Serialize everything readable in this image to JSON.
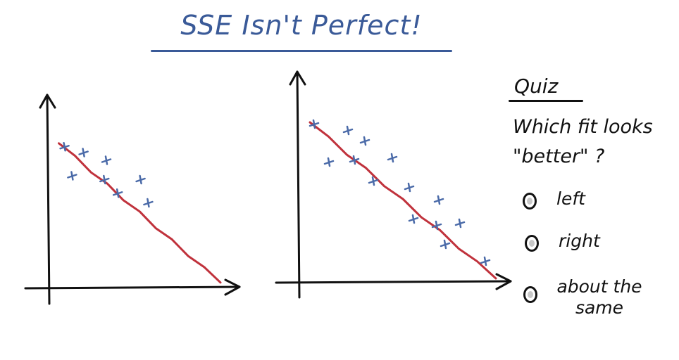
{
  "title": "SSE Isn't Perfect!",
  "quiz": {
    "heading": "Quiz",
    "question_line1": "Which fit looks",
    "question_line2": "\"better\" ?",
    "options": [
      {
        "label": "left"
      },
      {
        "label": "right"
      },
      {
        "label_line1": "about the",
        "label_line2": "same"
      }
    ]
  },
  "colors": {
    "title": "#3a5a98",
    "point_marks": "#4a6aa8",
    "fit_line": "#c0323c",
    "axes": "#111111"
  },
  "chart_data": [
    {
      "type": "scatter",
      "title": "",
      "xlabel": "",
      "ylabel": "",
      "xlim": [
        0,
        10
      ],
      "ylim": [
        0,
        10
      ],
      "points": [
        {
          "x": 0.8,
          "y": 7.3
        },
        {
          "x": 1.8,
          "y": 7.0
        },
        {
          "x": 3.0,
          "y": 6.6
        },
        {
          "x": 1.2,
          "y": 5.8
        },
        {
          "x": 2.9,
          "y": 5.6
        },
        {
          "x": 4.8,
          "y": 5.6
        },
        {
          "x": 3.6,
          "y": 4.9
        },
        {
          "x": 5.2,
          "y": 4.4
        }
      ],
      "fit_line": {
        "x": [
          0.5,
          9.0
        ],
        "y": [
          7.5,
          0.3
        ]
      }
    },
    {
      "type": "scatter",
      "title": "",
      "xlabel": "",
      "ylabel": "",
      "xlim": [
        0,
        10
      ],
      "ylim": [
        0,
        10
      ],
      "points": [
        {
          "x": 0.7,
          "y": 7.5
        },
        {
          "x": 2.3,
          "y": 7.2
        },
        {
          "x": 3.1,
          "y": 6.7
        },
        {
          "x": 1.4,
          "y": 5.7
        },
        {
          "x": 2.6,
          "y": 5.8
        },
        {
          "x": 4.4,
          "y": 5.9
        },
        {
          "x": 3.5,
          "y": 4.8
        },
        {
          "x": 5.2,
          "y": 4.5
        },
        {
          "x": 6.6,
          "y": 3.9
        },
        {
          "x": 5.4,
          "y": 3.0
        },
        {
          "x": 6.5,
          "y": 2.7
        },
        {
          "x": 7.6,
          "y": 2.8
        },
        {
          "x": 6.9,
          "y": 1.8
        },
        {
          "x": 8.8,
          "y": 1.0
        }
      ],
      "fit_line": {
        "x": [
          0.5,
          9.3
        ],
        "y": [
          7.6,
          0.2
        ]
      }
    }
  ]
}
